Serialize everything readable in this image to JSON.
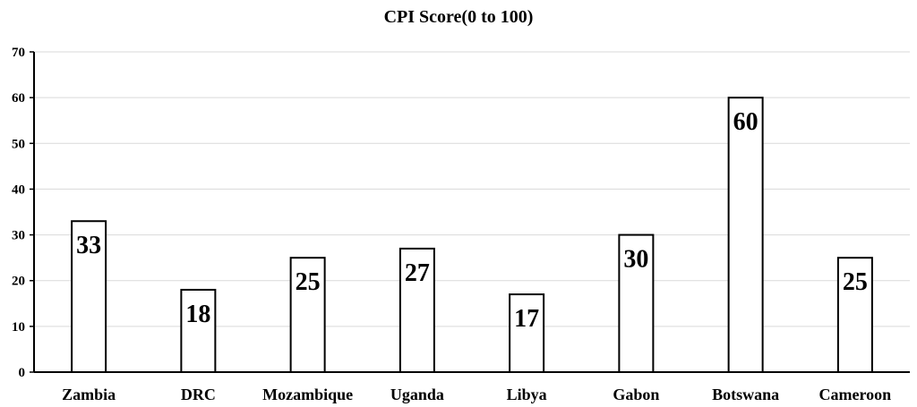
{
  "chart_data": {
    "type": "bar",
    "title": "CPI Score(0 to 100)",
    "xlabel": "",
    "ylabel": "",
    "categories": [
      "Zambia",
      "DRC",
      "Mozambique",
      "Uganda",
      "Libya",
      "Gabon",
      "Botswana",
      "Cameroon"
    ],
    "values": [
      33,
      18,
      25,
      27,
      17,
      30,
      60,
      25
    ],
    "value_labels": [
      "33",
      "18",
      "25",
      "27",
      "17",
      "30",
      "60",
      "25"
    ],
    "ylim": [
      0,
      70
    ],
    "yticks": [
      "0",
      "10",
      "20",
      "30",
      "40",
      "50",
      "60",
      "70"
    ],
    "grid": true,
    "legend": "none",
    "colors": {
      "bar_fill": "#ffffff",
      "bar_stroke": "#000000",
      "grid": "#d9d9d9",
      "axis": "#000000",
      "text": "#000000"
    }
  }
}
